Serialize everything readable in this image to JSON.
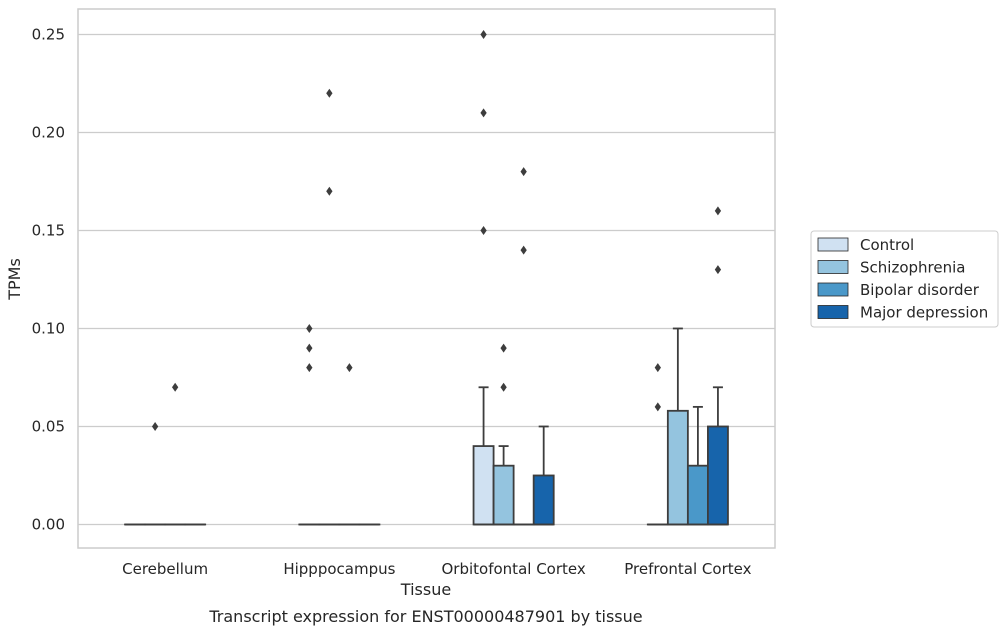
{
  "chart_data": {
    "type": "box",
    "title": "",
    "caption": "Transcript expression for ENST00000487901 by tissue",
    "xlabel": "Tissue",
    "ylabel": "TPMs",
    "ylim": [
      -0.012,
      0.263
    ],
    "yticks": [
      0.0,
      0.05,
      0.1,
      0.15,
      0.2,
      0.25
    ],
    "ytick_labels": [
      "0.00",
      "0.05",
      "0.10",
      "0.15",
      "0.20",
      "0.25"
    ],
    "grid": "horizontal",
    "legend_position": "right",
    "categories": [
      "Cerebellum",
      "Hipppocampus",
      "Orbitofontal Cortex",
      "Prefrontal Cortex"
    ],
    "series": [
      {
        "name": "Control",
        "color": "#d0e1f2",
        "boxes": [
          {
            "q1": 0.0,
            "median": 0.0,
            "q3": 0.0,
            "whisker_low": 0.0,
            "whisker_high": 0.0,
            "outliers": []
          },
          {
            "q1": 0.0,
            "median": 0.0,
            "q3": 0.0,
            "whisker_low": 0.0,
            "whisker_high": 0.0,
            "outliers": [
              0.08,
              0.09,
              0.1
            ]
          },
          {
            "q1": 0.0,
            "median": 0.0,
            "q3": 0.04,
            "whisker_low": 0.0,
            "whisker_high": 0.07,
            "outliers": [
              0.15,
              0.21,
              0.25
            ]
          },
          {
            "q1": 0.0,
            "median": 0.0,
            "q3": 0.0,
            "whisker_low": 0.0,
            "whisker_high": 0.0,
            "outliers": [
              0.06,
              0.08
            ]
          }
        ]
      },
      {
        "name": "Schizophrenia",
        "color": "#94c4df",
        "boxes": [
          {
            "q1": 0.0,
            "median": 0.0,
            "q3": 0.0,
            "whisker_low": 0.0,
            "whisker_high": 0.0,
            "outliers": [
              0.05
            ]
          },
          {
            "q1": 0.0,
            "median": 0.0,
            "q3": 0.0,
            "whisker_low": 0.0,
            "whisker_high": 0.0,
            "outliers": [
              0.17,
              0.22
            ]
          },
          {
            "q1": 0.0,
            "median": 0.0,
            "q3": 0.03,
            "whisker_low": 0.0,
            "whisker_high": 0.04,
            "outliers": [
              0.07,
              0.09
            ]
          },
          {
            "q1": 0.0,
            "median": 0.0,
            "q3": 0.058,
            "whisker_low": 0.0,
            "whisker_high": 0.1,
            "outliers": []
          }
        ]
      },
      {
        "name": "Bipolar disorder",
        "color": "#4a98c9",
        "boxes": [
          {
            "q1": 0.0,
            "median": 0.0,
            "q3": 0.0,
            "whisker_low": 0.0,
            "whisker_high": 0.0,
            "outliers": [
              0.07
            ]
          },
          {
            "q1": 0.0,
            "median": 0.0,
            "q3": 0.0,
            "whisker_low": 0.0,
            "whisker_high": 0.0,
            "outliers": [
              0.08
            ]
          },
          {
            "q1": 0.0,
            "median": 0.0,
            "q3": 0.0,
            "whisker_low": 0.0,
            "whisker_high": 0.0,
            "outliers": [
              0.14,
              0.18
            ]
          },
          {
            "q1": 0.0,
            "median": 0.0,
            "q3": 0.03,
            "whisker_low": 0.0,
            "whisker_high": 0.06,
            "outliers": []
          }
        ]
      },
      {
        "name": "Major depression",
        "color": "#1764ab",
        "boxes": [
          {
            "q1": 0.0,
            "median": 0.0,
            "q3": 0.0,
            "whisker_low": 0.0,
            "whisker_high": 0.0,
            "outliers": []
          },
          {
            "q1": 0.0,
            "median": 0.0,
            "q3": 0.0,
            "whisker_low": 0.0,
            "whisker_high": 0.0,
            "outliers": []
          },
          {
            "q1": 0.0,
            "median": 0.0,
            "q3": 0.025,
            "whisker_low": 0.0,
            "whisker_high": 0.05,
            "outliers": []
          },
          {
            "q1": 0.0,
            "median": 0.0,
            "q3": 0.05,
            "whisker_low": 0.0,
            "whisker_high": 0.07,
            "outliers": [
              0.13,
              0.16
            ]
          }
        ]
      }
    ]
  }
}
